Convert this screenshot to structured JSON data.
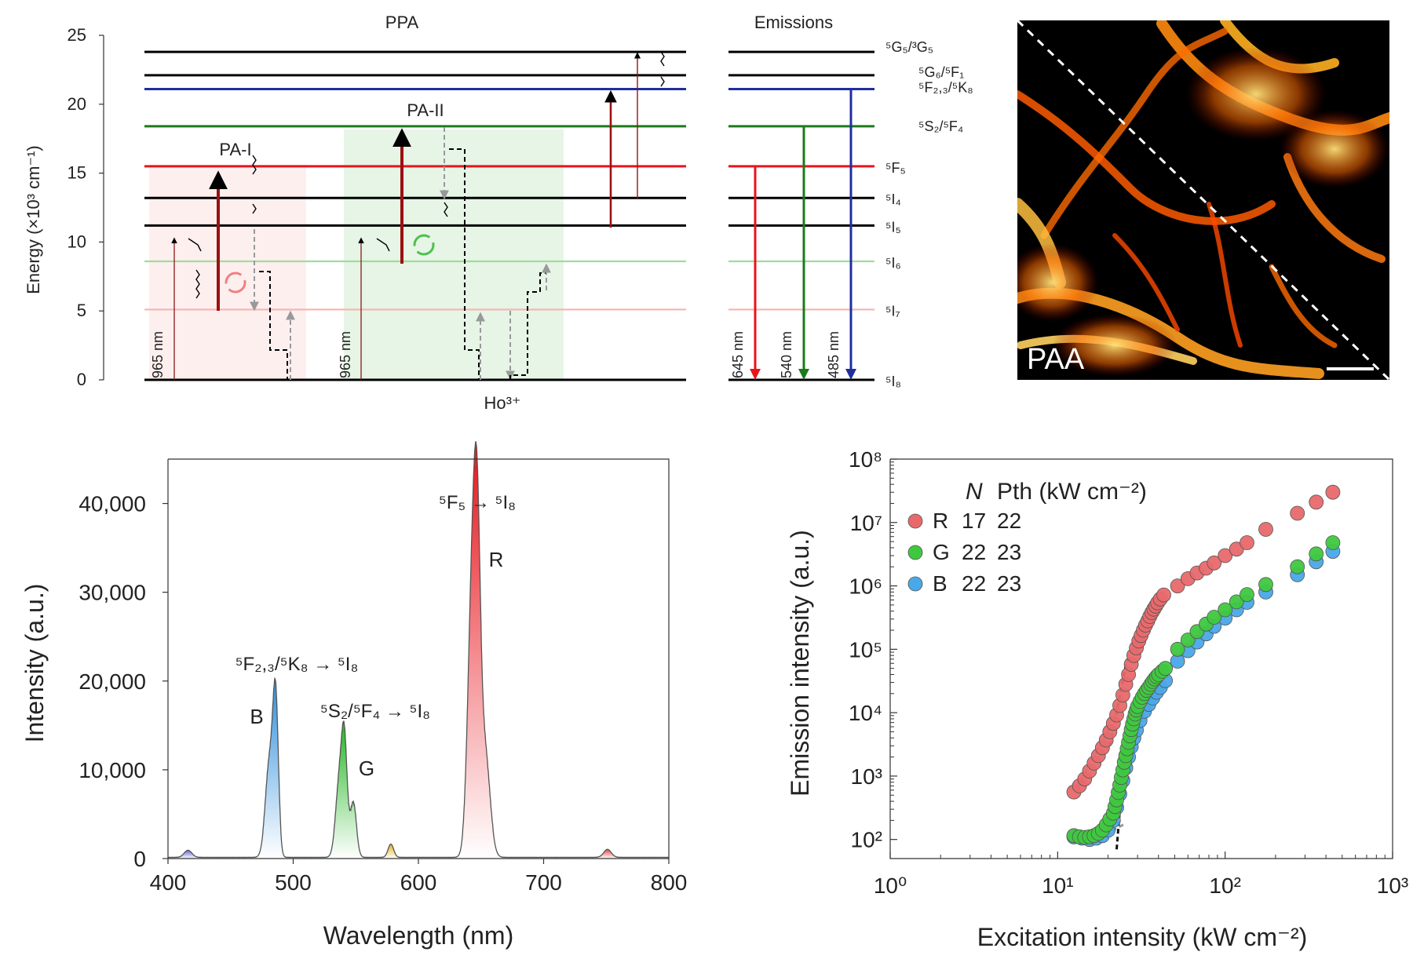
{
  "chart_data": [
    {
      "type": "energy-level-diagram",
      "panel": "top-left",
      "title": "PPA",
      "section2_title": "Emissions",
      "ion_label": "Ho³⁺",
      "ylabel": "Energy (×10³ cm⁻¹)",
      "ylim": [
        0,
        25
      ],
      "yticks": [
        0,
        5,
        10,
        15,
        20,
        25
      ],
      "levels": [
        {
          "energy": 0,
          "color": "#000000",
          "label": "⁵I₈"
        },
        {
          "energy": 5.1,
          "color": "#f7b3b3",
          "label": "⁵I₇"
        },
        {
          "energy": 8.6,
          "color": "#9fdc9f",
          "label": "⁵I₆"
        },
        {
          "energy": 11.2,
          "color": "#000000",
          "label": "⁵I₅"
        },
        {
          "energy": 13.2,
          "color": "#000000",
          "label": "⁵I₄"
        },
        {
          "energy": 15.5,
          "color": "#e8141c",
          "label": "⁵F₅"
        },
        {
          "energy": 18.4,
          "color": "#1b7a1b",
          "label": "⁵S₂/⁵F₄"
        },
        {
          "energy": 21.1,
          "color": "#1f2f9c",
          "label": "⁵F₂,₃/⁵K₈"
        },
        {
          "energy": 22.1,
          "color": "#000000",
          "label": "⁵G₆/⁵F₁"
        },
        {
          "energy": 23.8,
          "color": "#000000",
          "label": "⁵G₅/³G₅"
        }
      ],
      "annotations": [
        "PA-I",
        "PA-II",
        "965 nm",
        "965 nm"
      ],
      "emissions": [
        {
          "label": "645 nm",
          "from": 15.5,
          "color": "#e8141c"
        },
        {
          "label": "540 nm",
          "from": 18.4,
          "color": "#1b7a1b"
        },
        {
          "label": "485 nm",
          "from": 21.1,
          "color": "#1f2f9c"
        }
      ]
    },
    {
      "type": "image",
      "panel": "top-right",
      "label": "PAA"
    },
    {
      "type": "line",
      "panel": "bottom-left",
      "xlabel": "Wavelength (nm)",
      "ylabel": "Intensity (a.u.)",
      "xlim": [
        400,
        800
      ],
      "ylim": [
        0,
        45000
      ],
      "xticks": [
        400,
        500,
        600,
        700,
        800
      ],
      "yticks": [
        0,
        10000,
        20000,
        30000,
        40000
      ],
      "ytick_labels": [
        "0",
        "10,000",
        "20,000",
        "30,000",
        "40,000"
      ],
      "peaks": [
        {
          "center": 416,
          "height": 800,
          "width": 3,
          "color": "#6b6bd6"
        },
        {
          "center": 481,
          "height": 10500,
          "width": 3.2,
          "color": "#2f8fdc"
        },
        {
          "center": 486,
          "height": 16500,
          "width": 2.2,
          "color": "#2f8fdc"
        },
        {
          "center": 537,
          "height": 8500,
          "width": 3,
          "color": "#23b823"
        },
        {
          "center": 541,
          "height": 11000,
          "width": 2.2,
          "color": "#23b823"
        },
        {
          "center": 548,
          "height": 6000,
          "width": 2.5,
          "color": "#23b823"
        },
        {
          "center": 578,
          "height": 1500,
          "width": 2.2,
          "color": "#e8b020"
        },
        {
          "center": 643,
          "height": 30000,
          "width": 3.5,
          "color": "#e8141c"
        },
        {
          "center": 647,
          "height": 25000,
          "width": 2.6,
          "color": "#e8141c"
        },
        {
          "center": 653,
          "height": 12000,
          "width": 4,
          "color": "#e8141c"
        },
        {
          "center": 751,
          "height": 900,
          "width": 3,
          "color": "#e05050"
        }
      ],
      "annotations": [
        {
          "text": "⁵F₅ → ⁵I₈"
        },
        {
          "text": "R"
        },
        {
          "text": "⁵F₂,₃/⁵K₈ → ⁵I₈"
        },
        {
          "text": "B"
        },
        {
          "text": "⁵S₂/⁵F₄ → ⁵I₈"
        },
        {
          "text": "G"
        }
      ]
    },
    {
      "type": "scatter",
      "panel": "bottom-right",
      "log_x": true,
      "log_y": true,
      "xlabel": "Excitation intensity (kW cm⁻²)",
      "ylabel": "Emission intensity (a.u.)",
      "xlim": [
        1,
        1000
      ],
      "ylim": [
        50,
        100000000
      ],
      "xtick_labels": [
        "10⁰",
        "10¹",
        "10²",
        "10³"
      ],
      "ytick_labels": [
        "10²",
        "10³",
        "10⁴",
        "10⁵",
        "10⁶",
        "10⁷",
        "10⁸"
      ],
      "legend_header": [
        "N",
        "Pth (kW cm⁻²)"
      ],
      "series": [
        {
          "name": "R",
          "N": "17",
          "Pth": "22",
          "color": "#e8696b",
          "x": [
            12.5,
            13.5,
            14.5,
            15.5,
            16.5,
            17.5,
            18.5,
            19.5,
            20.5,
            21.5,
            22.5,
            23.5,
            24.5,
            25.5,
            26.5,
            27.5,
            28.5,
            29.5,
            30.5,
            31.5,
            32.5,
            33.5,
            34.5,
            35.5,
            36.5,
            37.5,
            38.5,
            39.5,
            41,
            43,
            52,
            60,
            68,
            77,
            86,
            100,
            117,
            135,
            175,
            270,
            350,
            440
          ],
          "y": [
            560,
            700,
            900,
            1200,
            1600,
            2100,
            2800,
            3700,
            5000,
            6800,
            9200,
            13000,
            19000,
            28000,
            40000,
            58000,
            80000,
            105000,
            135000,
            165000,
            200000,
            240000,
            280000,
            330000,
            380000,
            430000,
            480000,
            540000,
            620000,
            720000,
            1000000,
            1300000,
            1600000,
            1900000,
            2300000,
            3000000,
            3800000,
            4800000,
            7800000,
            14000000,
            21000000,
            30000000
          ]
        },
        {
          "name": "G",
          "N": "22",
          "Pth": "23",
          "color": "#3fc83f",
          "x": [
            12.5,
            13.5,
            14.5,
            15.5,
            16.5,
            17.5,
            18.5,
            19.5,
            20.5,
            21.5,
            22,
            22.5,
            23,
            23.5,
            24,
            24.5,
            25,
            25.5,
            26,
            26.5,
            27,
            27.5,
            28,
            28.5,
            29,
            29.5,
            30,
            31,
            32,
            33,
            34,
            35,
            36,
            37,
            38,
            39,
            40,
            42,
            44,
            52,
            60,
            68,
            77,
            86,
            100,
            117,
            135,
            175,
            270,
            350,
            440
          ],
          "y": [
            115,
            110,
            108,
            110,
            115,
            125,
            140,
            170,
            210,
            260,
            330,
            420,
            550,
            720,
            950,
            1250,
            1650,
            2100,
            2700,
            3400,
            4300,
            5400,
            6600,
            8000,
            9500,
            11000,
            12500,
            15000,
            17500,
            20000,
            22500,
            25000,
            28000,
            31000,
            34000,
            37000,
            40000,
            45000,
            50000,
            100000,
            140000,
            190000,
            250000,
            320000,
            420000,
            560000,
            730000,
            1050000,
            2000000,
            3200000,
            4800000
          ]
        },
        {
          "name": "B",
          "N": "22",
          "Pth": "23",
          "color": "#49a8e8",
          "x": [
            12.5,
            14,
            15.5,
            17,
            18.5,
            20,
            21.5,
            22.5,
            23.5,
            24.5,
            25.5,
            26.5,
            27.5,
            28.5,
            29.5,
            31,
            33,
            35,
            37,
            39,
            41,
            44,
            52,
            60,
            68,
            77,
            86,
            100,
            117,
            135,
            175,
            270,
            350,
            440
          ],
          "y": [
            110,
            105,
            100,
            105,
            115,
            140,
            200,
            320,
            520,
            850,
            1350,
            2000,
            2900,
            4000,
            5300,
            7500,
            10500,
            13500,
            17000,
            21000,
            25000,
            32000,
            65000,
            95000,
            130000,
            175000,
            230000,
            310000,
            420000,
            550000,
            800000,
            1500000,
            2400000,
            3500000
          ]
        }
      ]
    }
  ]
}
